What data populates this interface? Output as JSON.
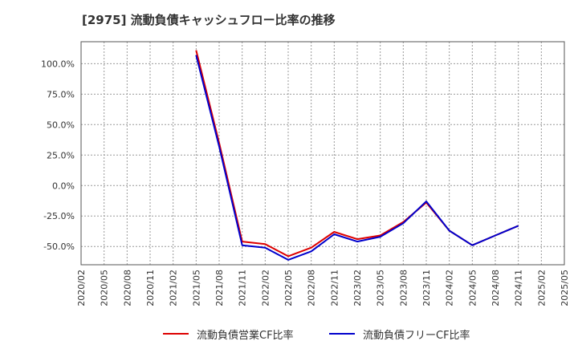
{
  "title": "[2975]  流動負債キャッシュフロー比率の推移",
  "chart_data": {
    "type": "line",
    "title": "[2975]  流動負債キャッシュフロー比率の推移",
    "xlabel": "",
    "ylabel": "",
    "ylim": [
      -65,
      118
    ],
    "yticks": [
      -50,
      -25,
      0,
      25,
      50,
      75,
      100
    ],
    "ytick_labels": [
      "-50.0%",
      "-25.0%",
      "0.0%",
      "25.0%",
      "50.0%",
      "75.0%",
      "100.0%"
    ],
    "x_categories": [
      "2020/02",
      "2020/05",
      "2020/08",
      "2020/11",
      "2021/02",
      "2021/05",
      "2021/08",
      "2021/11",
      "2022/02",
      "2022/05",
      "2022/08",
      "2022/11",
      "2023/02",
      "2023/05",
      "2023/08",
      "2023/11",
      "2024/02",
      "2024/05",
      "2024/08",
      "2024/11",
      "2025/02",
      "2025/05"
    ],
    "grid": true,
    "series": [
      {
        "name": "流動負債営業CF比率",
        "color": "#dd0000",
        "start_index": 5,
        "values": [
          111,
          35,
          -46,
          -48,
          -58,
          -51,
          -38,
          -44,
          -41,
          -30,
          -14,
          -37,
          -49,
          -41,
          -33
        ]
      },
      {
        "name": "流動負債フリーCF比率",
        "color": "#0000cc",
        "start_index": 5,
        "values": [
          107,
          32,
          -49,
          -51,
          -61,
          -54,
          -40,
          -46,
          -42,
          -31,
          -13,
          -37,
          -49,
          -41,
          -33
        ]
      }
    ],
    "legend_position": "bottom"
  }
}
